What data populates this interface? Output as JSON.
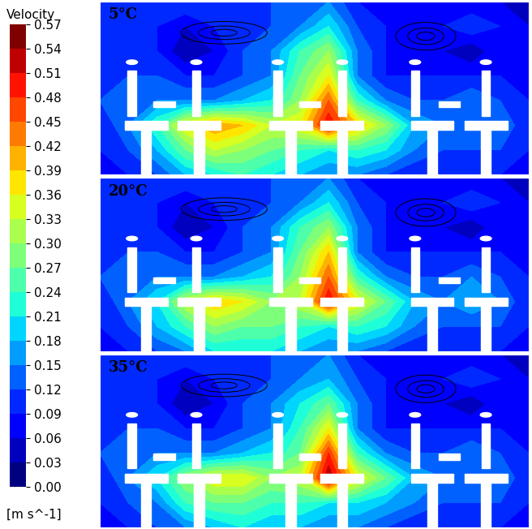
{
  "chart_data": {
    "type": "heatmap",
    "tick_labels": false,
    "colorbar_label": "Velocity",
    "colorbar_unit": "[m s^-1]",
    "colorbar_range": [
      0.0,
      0.57
    ],
    "colorbar_ticks": [
      {
        "value": 0.0,
        "label": "0.00"
      },
      {
        "value": 0.03,
        "label": "0.03"
      },
      {
        "value": 0.06,
        "label": "0.06"
      },
      {
        "value": 0.09,
        "label": "0.09"
      },
      {
        "value": 0.12,
        "label": "0.12"
      },
      {
        "value": 0.15,
        "label": "0.15"
      },
      {
        "value": 0.18,
        "label": "0.18"
      },
      {
        "value": 0.21,
        "label": "0.21"
      },
      {
        "value": 0.24,
        "label": "0.24"
      },
      {
        "value": 0.27,
        "label": "0.27"
      },
      {
        "value": 0.3,
        "label": "0.30"
      },
      {
        "value": 0.33,
        "label": "0.33"
      },
      {
        "value": 0.36,
        "label": "0.36"
      },
      {
        "value": 0.39,
        "label": "0.39"
      },
      {
        "value": 0.42,
        "label": "0.42"
      },
      {
        "value": 0.45,
        "label": "0.45"
      },
      {
        "value": 0.48,
        "label": "0.48"
      },
      {
        "value": 0.51,
        "label": "0.51"
      },
      {
        "value": 0.54,
        "label": "0.54"
      },
      {
        "value": 0.57,
        "label": "0.57"
      }
    ],
    "panels": [
      {
        "title": "5°C",
        "cells": [
          [
            0.09,
            0.12,
            0.12,
            0.12,
            0.12,
            0.12,
            0.12,
            0.15,
            0.15,
            0.09,
            0.06,
            0.06,
            0.06,
            0.06,
            0.06,
            0.03
          ],
          [
            0.12,
            0.12,
            0.09,
            0.06,
            0.09,
            0.12,
            0.12,
            0.15,
            0.21,
            0.12,
            0.09,
            0.09,
            0.09,
            0.12,
            0.09,
            0.06
          ],
          [
            0.12,
            0.12,
            0.09,
            0.03,
            0.06,
            0.12,
            0.15,
            0.24,
            0.3,
            0.15,
            0.09,
            0.09,
            0.06,
            0.03,
            0.09,
            0.09
          ],
          [
            0.12,
            0.12,
            0.12,
            0.09,
            0.09,
            0.12,
            0.15,
            0.27,
            0.36,
            0.15,
            0.09,
            0.09,
            0.09,
            0.09,
            0.09,
            0.09
          ],
          [
            0.12,
            0.15,
            0.15,
            0.15,
            0.15,
            0.18,
            0.21,
            0.3,
            0.45,
            0.24,
            0.15,
            0.12,
            0.12,
            0.15,
            0.12,
            0.09
          ],
          [
            0.09,
            0.15,
            0.24,
            0.36,
            0.42,
            0.39,
            0.33,
            0.36,
            0.51,
            0.39,
            0.3,
            0.18,
            0.15,
            0.15,
            0.15,
            0.09
          ],
          [
            0.09,
            0.12,
            0.18,
            0.27,
            0.33,
            0.3,
            0.27,
            0.24,
            0.21,
            0.24,
            0.21,
            0.15,
            0.12,
            0.12,
            0.12,
            0.09
          ],
          [
            0.06,
            0.09,
            0.12,
            0.18,
            0.21,
            0.24,
            0.21,
            0.18,
            0.15,
            0.15,
            0.12,
            0.09,
            0.09,
            0.09,
            0.09,
            0.06
          ]
        ]
      },
      {
        "title": "20°C",
        "cells": [
          [
            0.09,
            0.12,
            0.12,
            0.12,
            0.12,
            0.12,
            0.12,
            0.15,
            0.15,
            0.09,
            0.06,
            0.06,
            0.06,
            0.06,
            0.06,
            0.03
          ],
          [
            0.12,
            0.12,
            0.09,
            0.06,
            0.09,
            0.12,
            0.12,
            0.15,
            0.21,
            0.12,
            0.09,
            0.09,
            0.09,
            0.12,
            0.09,
            0.06
          ],
          [
            0.12,
            0.12,
            0.09,
            0.03,
            0.06,
            0.12,
            0.15,
            0.24,
            0.3,
            0.15,
            0.09,
            0.09,
            0.06,
            0.03,
            0.09,
            0.09
          ],
          [
            0.12,
            0.12,
            0.12,
            0.09,
            0.09,
            0.12,
            0.15,
            0.27,
            0.39,
            0.15,
            0.09,
            0.09,
            0.09,
            0.09,
            0.09,
            0.09
          ],
          [
            0.12,
            0.15,
            0.15,
            0.15,
            0.15,
            0.18,
            0.21,
            0.3,
            0.45,
            0.24,
            0.15,
            0.12,
            0.12,
            0.15,
            0.12,
            0.09
          ],
          [
            0.09,
            0.15,
            0.21,
            0.33,
            0.39,
            0.36,
            0.3,
            0.33,
            0.51,
            0.36,
            0.27,
            0.18,
            0.15,
            0.18,
            0.15,
            0.09
          ],
          [
            0.09,
            0.12,
            0.18,
            0.24,
            0.3,
            0.27,
            0.27,
            0.24,
            0.21,
            0.24,
            0.21,
            0.15,
            0.12,
            0.12,
            0.12,
            0.09
          ],
          [
            0.06,
            0.09,
            0.12,
            0.15,
            0.21,
            0.21,
            0.21,
            0.18,
            0.15,
            0.15,
            0.12,
            0.09,
            0.09,
            0.09,
            0.09,
            0.06
          ]
        ]
      },
      {
        "title": "35°C",
        "cells": [
          [
            0.09,
            0.12,
            0.12,
            0.12,
            0.12,
            0.12,
            0.12,
            0.15,
            0.15,
            0.09,
            0.06,
            0.06,
            0.06,
            0.06,
            0.06,
            0.03
          ],
          [
            0.12,
            0.12,
            0.09,
            0.06,
            0.09,
            0.12,
            0.12,
            0.15,
            0.18,
            0.12,
            0.09,
            0.09,
            0.09,
            0.12,
            0.09,
            0.06
          ],
          [
            0.12,
            0.12,
            0.09,
            0.03,
            0.06,
            0.12,
            0.15,
            0.21,
            0.27,
            0.15,
            0.09,
            0.09,
            0.06,
            0.03,
            0.09,
            0.09
          ],
          [
            0.12,
            0.12,
            0.12,
            0.09,
            0.09,
            0.12,
            0.15,
            0.24,
            0.36,
            0.15,
            0.09,
            0.09,
            0.09,
            0.09,
            0.09,
            0.09
          ],
          [
            0.12,
            0.15,
            0.15,
            0.15,
            0.15,
            0.18,
            0.21,
            0.27,
            0.48,
            0.24,
            0.15,
            0.12,
            0.12,
            0.15,
            0.12,
            0.09
          ],
          [
            0.09,
            0.15,
            0.21,
            0.3,
            0.36,
            0.36,
            0.3,
            0.33,
            0.54,
            0.36,
            0.27,
            0.18,
            0.15,
            0.15,
            0.15,
            0.09
          ],
          [
            0.09,
            0.12,
            0.15,
            0.24,
            0.27,
            0.27,
            0.24,
            0.24,
            0.21,
            0.21,
            0.18,
            0.15,
            0.12,
            0.12,
            0.12,
            0.09
          ],
          [
            0.06,
            0.09,
            0.12,
            0.15,
            0.18,
            0.21,
            0.18,
            0.18,
            0.15,
            0.15,
            0.12,
            0.09,
            0.09,
            0.09,
            0.09,
            0.06
          ]
        ]
      }
    ]
  }
}
